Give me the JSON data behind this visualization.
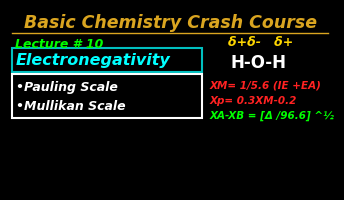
{
  "background_color": "#000000",
  "title": "Basic Chemistry Crash Course",
  "title_color": "#DAA520",
  "lecture": "Lecture # 10",
  "lecture_color": "#00FF00",
  "topic": "Electronegativity",
  "topic_color": "#00FFFF",
  "topic_box_color": "#00BFBF",
  "bullet1": "•Pauling Scale",
  "bullet2": "•Mullikan Scale",
  "bullet_color": "#FFFFFF",
  "bullet_box_color": "#FFFFFF",
  "delta_line": "δ+δ-   δ+",
  "delta_color": "#FFD700",
  "hoh": "H-O-H",
  "hoh_color": "#FFFFFF",
  "formula1": "XM= 1/5.6 (IE +EA)",
  "formula2": "Xp= 0.3XM-0.2",
  "formula3": "XA-XB = [Δ /96.6] ^½",
  "formula_color": "#FF2222",
  "formula3_color": "#00FF00"
}
